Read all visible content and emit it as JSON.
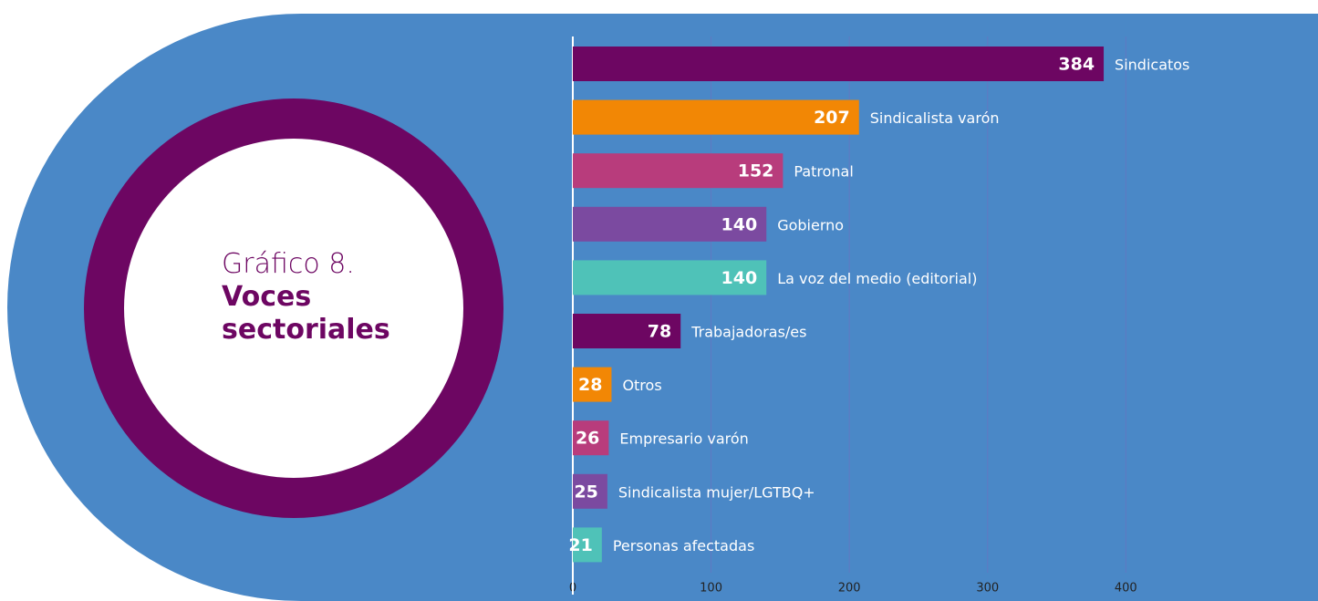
{
  "chart_data": {
    "type": "barh",
    "title": "Gráfico 8.",
    "subtitle": "Voces sectoriales",
    "categories": [
      "Sindicatos",
      "Sindicalista varón",
      "Patronal",
      "Gobierno",
      "La voz del medio (editorial)",
      "Trabajadoras/es",
      "Otros",
      "Empresario varón",
      "Sindicalista mujer/LGTBQ+",
      "Personas afectadas"
    ],
    "values": [
      384,
      207,
      152,
      140,
      140,
      78,
      28,
      26,
      25,
      21
    ],
    "colors": [
      "#6d0662",
      "#f28705",
      "#b83c7c",
      "#7b4aa0",
      "#4fc2b8",
      "#6d0662",
      "#f28705",
      "#b83c7c",
      "#7b4aa0",
      "#4fc2b8"
    ],
    "xlim": [
      0,
      539
    ],
    "xticks": [
      0,
      100,
      200,
      300,
      400
    ],
    "grid": true
  }
}
